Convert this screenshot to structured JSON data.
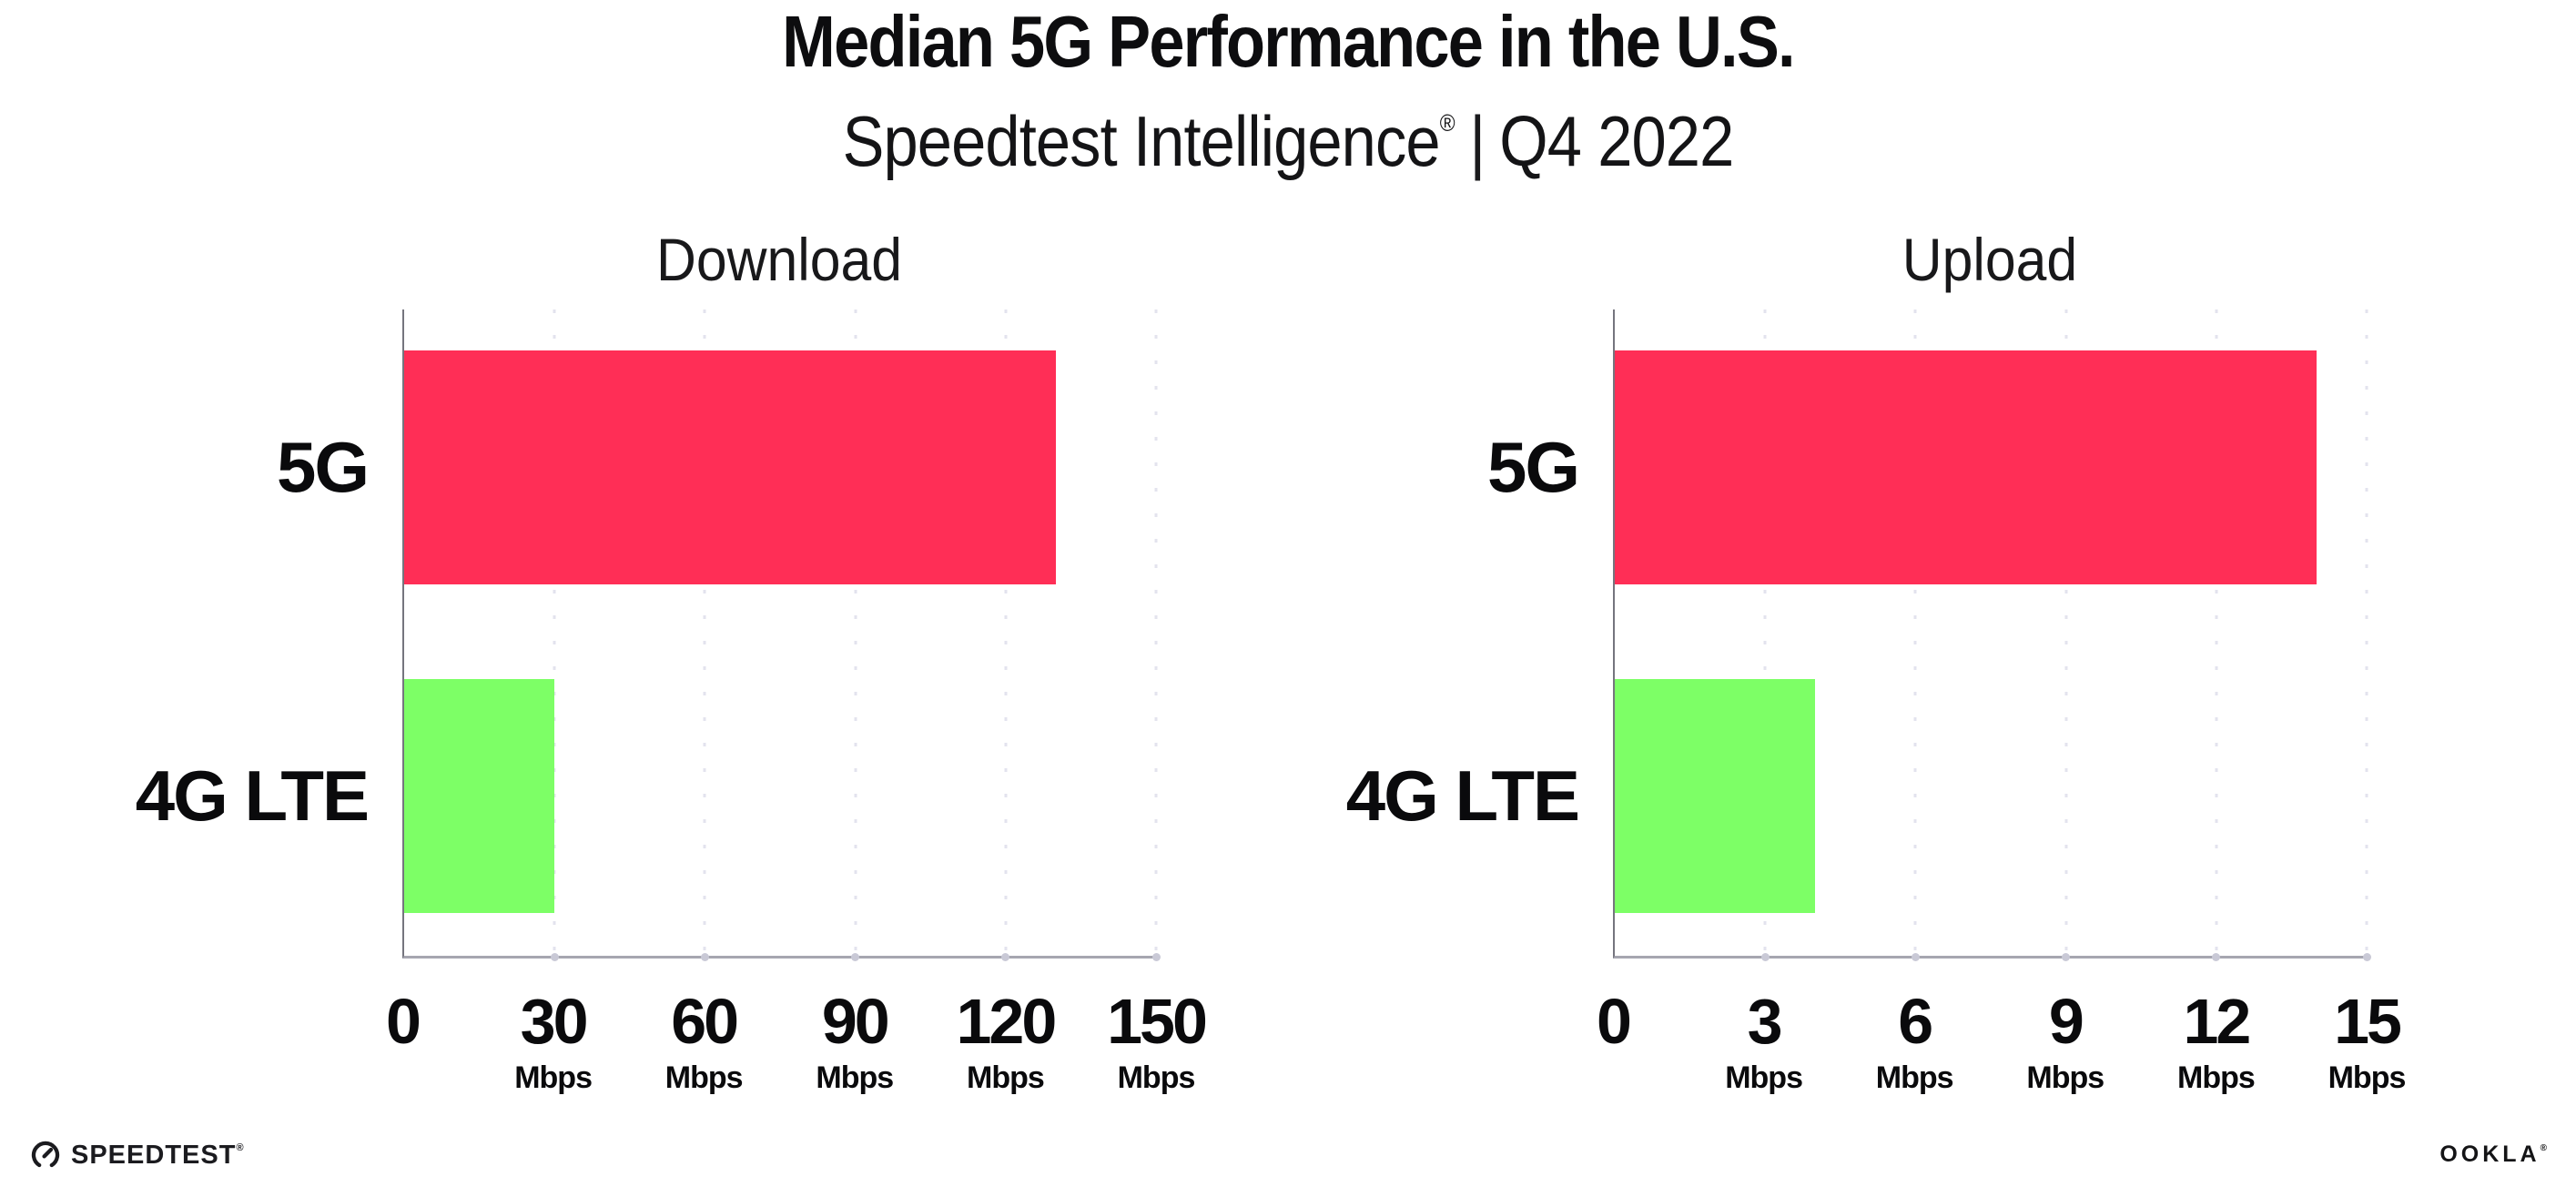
{
  "header": {
    "title": "Median 5G Performance in the U.S.",
    "subtitle": {
      "brand": "Speedtest Intelligence",
      "reg": "®",
      "divider": "|",
      "period": "Q4 2022"
    }
  },
  "colors": {
    "bar_5g": "#ff2e56",
    "bar_4g_lte": "#7dff66",
    "axis_y": "#75757e",
    "axis_x": "#a6a6b0",
    "grid_dot": "#e3e3ee",
    "text": "#0d0d0f"
  },
  "chart_data": [
    {
      "type": "bar",
      "orientation": "horizontal",
      "title": "Download",
      "categories": [
        "5G",
        "4G LTE"
      ],
      "values": [
        130,
        30
      ],
      "unit": "Mbps",
      "xlim": [
        0,
        150
      ],
      "xticks": [
        0,
        30,
        60,
        90,
        120,
        150
      ],
      "grid": "dotted-vertical",
      "legend": "none",
      "bar_colors": [
        "#ff2e56",
        "#7dff66"
      ]
    },
    {
      "type": "bar",
      "orientation": "horizontal",
      "title": "Upload",
      "categories": [
        "5G",
        "4G LTE"
      ],
      "values": [
        14,
        4
      ],
      "unit": "Mbps",
      "xlim": [
        0,
        15
      ],
      "xticks": [
        0,
        3,
        6,
        9,
        12,
        15
      ],
      "grid": "dotted-vertical",
      "legend": "none",
      "bar_colors": [
        "#ff2e56",
        "#7dff66"
      ]
    }
  ],
  "footer": {
    "speedtest": "SPEEDTEST",
    "speedtest_mark": "®",
    "ookla": "OOKLA",
    "ookla_mark": "®"
  }
}
